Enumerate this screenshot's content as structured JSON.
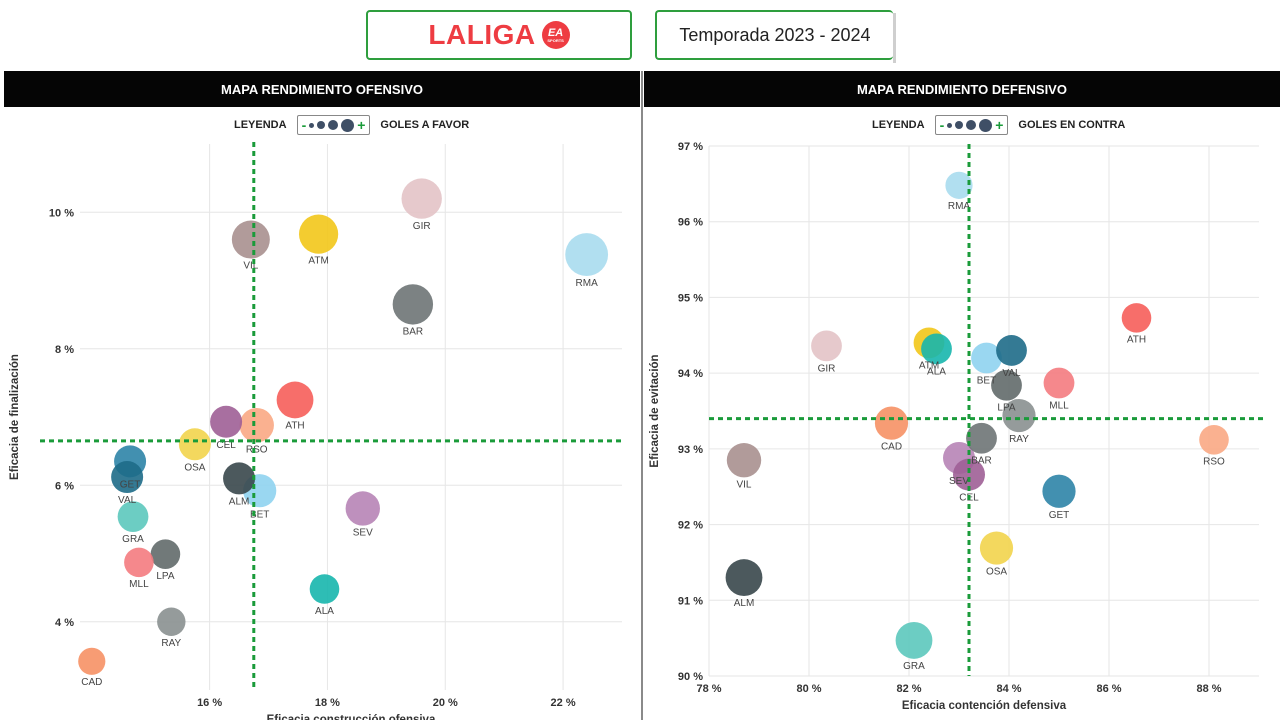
{
  "header": {
    "logo_text": "LALIGA",
    "logo_badge": "EA",
    "logo_badge_sub": "SPORTS",
    "season": "Temporada 2023 - 2024"
  },
  "panels": {
    "left_title": "MAPA RENDIMIENTO OFENSIVO",
    "right_title": "MAPA RENDIMIENTO DEFENSIVO"
  },
  "legends": {
    "left": {
      "label": "LEYENDA",
      "minus": "-",
      "plus": "+",
      "text": "GOLES A FAVOR"
    },
    "right": {
      "label": "LEYENDA",
      "minus": "-",
      "plus": "+",
      "text": "GOLES EN CONTRA"
    }
  },
  "colors": {
    "accent_green": "#1a9b3a",
    "title_bar": "#050505",
    "brand_red": "#ee3c42"
  },
  "chart_data": [
    {
      "type": "scatter",
      "title": "MAPA RENDIMIENTO OFENSIVO",
      "xlabel": "Eficacia construcción ofensiva",
      "ylabel": "Eficacia de finalización",
      "xlim": [
        13.8,
        23.0
      ],
      "ylim": [
        3.0,
        11.0
      ],
      "xticks": [
        16,
        18,
        20,
        22
      ],
      "xtick_labels": [
        "16 %",
        "18 %",
        "20 %",
        "22 %"
      ],
      "yticks": [
        4,
        6,
        8,
        10
      ],
      "ytick_labels": [
        "4 %",
        "6 %",
        "8 %",
        "10 %"
      ],
      "reference_lines": {
        "x": 16.75,
        "y": 6.65
      },
      "grid": true,
      "bubble_size_meaning": "GOLES A FAVOR",
      "points": [
        {
          "label": "GIR",
          "x": 19.6,
          "y": 10.2,
          "size": 0.85,
          "color": "#e3c3c6"
        },
        {
          "label": "RMA",
          "x": 22.4,
          "y": 9.38,
          "size": 0.95,
          "color": "#a9dcee"
        },
        {
          "label": "VIL",
          "x": 16.7,
          "y": 9.6,
          "size": 0.75,
          "color": "#a8908f"
        },
        {
          "label": "ATM",
          "x": 17.85,
          "y": 9.68,
          "size": 0.8,
          "color": "#f2c619"
        },
        {
          "label": "BAR",
          "x": 19.45,
          "y": 8.65,
          "size": 0.85,
          "color": "#6e7475"
        },
        {
          "label": "ATH",
          "x": 17.45,
          "y": 7.25,
          "size": 0.7,
          "color": "#f65e5a"
        },
        {
          "label": "CEL",
          "x": 16.28,
          "y": 6.93,
          "size": 0.5,
          "color": "#9e5f96"
        },
        {
          "label": "RSO",
          "x": 16.8,
          "y": 6.88,
          "size": 0.6,
          "color": "#f9a884"
        },
        {
          "label": "OSA",
          "x": 15.75,
          "y": 6.6,
          "size": 0.5,
          "color": "#f2d44c"
        },
        {
          "label": "GET",
          "x": 14.65,
          "y": 6.35,
          "size": 0.5,
          "color": "#2d84a7"
        },
        {
          "label": "VAL",
          "x": 14.6,
          "y": 6.12,
          "size": 0.5,
          "color": "#1e6c88"
        },
        {
          "label": "ALM",
          "x": 16.5,
          "y": 6.1,
          "size": 0.5,
          "color": "#38474b"
        },
        {
          "label": "BET",
          "x": 16.85,
          "y": 5.92,
          "size": 0.55,
          "color": "#8fd3ef"
        },
        {
          "label": "SEV",
          "x": 18.6,
          "y": 5.66,
          "size": 0.6,
          "color": "#b784b6"
        },
        {
          "label": "GRA",
          "x": 14.7,
          "y": 5.54,
          "size": 0.45,
          "color": "#5cc8bd"
        },
        {
          "label": "LPA",
          "x": 15.25,
          "y": 4.99,
          "size": 0.4,
          "color": "#626a6a"
        },
        {
          "label": "MLL",
          "x": 14.8,
          "y": 4.87,
          "size": 0.4,
          "color": "#f47b80"
        },
        {
          "label": "ALA",
          "x": 17.95,
          "y": 4.48,
          "size": 0.4,
          "color": "#17b6ad"
        },
        {
          "label": "RAY",
          "x": 15.35,
          "y": 4.0,
          "size": 0.35,
          "color": "#8a9090"
        },
        {
          "label": "CAD",
          "x": 14.0,
          "y": 3.42,
          "size": 0.3,
          "color": "#f69165"
        }
      ]
    },
    {
      "type": "scatter",
      "title": "MAPA RENDIMIENTO DEFENSIVO",
      "xlabel": "Eficacia contención defensiva",
      "ylabel": "Eficacia de evitación",
      "xlim": [
        78,
        89
      ],
      "ylim": [
        90,
        97
      ],
      "xticks": [
        78,
        80,
        82,
        84,
        86,
        88
      ],
      "xtick_labels": [
        "78 %",
        "80 %",
        "82 %",
        "84 %",
        "86 %",
        "88 %"
      ],
      "yticks": [
        90,
        91,
        92,
        93,
        94,
        95,
        96,
        97
      ],
      "ytick_labels": [
        "90 %",
        "91 %",
        "92 %",
        "93 %",
        "94 %",
        "95 %",
        "96 %",
        "97 %"
      ],
      "reference_lines": {
        "x": 83.2,
        "y": 93.4
      },
      "grid": true,
      "bubble_size_meaning": "GOLES EN CONTRA",
      "points": [
        {
          "label": "RMA",
          "x": 83.0,
          "y": 96.48,
          "size": 0.3,
          "color": "#a9dcee"
        },
        {
          "label": "ATH",
          "x": 86.55,
          "y": 94.73,
          "size": 0.4,
          "color": "#f65e5a"
        },
        {
          "label": "GIR",
          "x": 80.35,
          "y": 94.36,
          "size": 0.45,
          "color": "#e3c3c6"
        },
        {
          "label": "ATM",
          "x": 82.4,
          "y": 94.4,
          "size": 0.45,
          "color": "#f2c619"
        },
        {
          "label": "ALA",
          "x": 82.55,
          "y": 94.32,
          "size": 0.45,
          "color": "#17b6ad"
        },
        {
          "label": "BET",
          "x": 83.55,
          "y": 94.2,
          "size": 0.45,
          "color": "#8fd3ef"
        },
        {
          "label": "VAL",
          "x": 84.05,
          "y": 94.3,
          "size": 0.45,
          "color": "#1e6c88"
        },
        {
          "label": "LPA",
          "x": 83.95,
          "y": 93.84,
          "size": 0.45,
          "color": "#626a6a"
        },
        {
          "label": "MLL",
          "x": 85.0,
          "y": 93.87,
          "size": 0.45,
          "color": "#f47b80"
        },
        {
          "label": "RAY",
          "x": 84.2,
          "y": 93.44,
          "size": 0.55,
          "color": "#8a9090"
        },
        {
          "label": "CAD",
          "x": 81.65,
          "y": 93.34,
          "size": 0.55,
          "color": "#f69165"
        },
        {
          "label": "BAR",
          "x": 83.45,
          "y": 93.14,
          "size": 0.45,
          "color": "#6e7475"
        },
        {
          "label": "RSO",
          "x": 88.1,
          "y": 93.12,
          "size": 0.4,
          "color": "#f9a884"
        },
        {
          "label": "VIL",
          "x": 78.7,
          "y": 92.85,
          "size": 0.6,
          "color": "#a8908f"
        },
        {
          "label": "SEV",
          "x": 83.0,
          "y": 92.88,
          "size": 0.5,
          "color": "#b784b6"
        },
        {
          "label": "CEL",
          "x": 83.2,
          "y": 92.66,
          "size": 0.5,
          "color": "#9e5f96"
        },
        {
          "label": "GET",
          "x": 85.0,
          "y": 92.44,
          "size": 0.55,
          "color": "#2d84a7"
        },
        {
          "label": "OSA",
          "x": 83.75,
          "y": 91.69,
          "size": 0.55,
          "color": "#f2d44c"
        },
        {
          "label": "ALM",
          "x": 78.7,
          "y": 91.3,
          "size": 0.7,
          "color": "#38474b"
        },
        {
          "label": "GRA",
          "x": 82.1,
          "y": 90.47,
          "size": 0.7,
          "color": "#5cc8bd"
        }
      ]
    }
  ]
}
